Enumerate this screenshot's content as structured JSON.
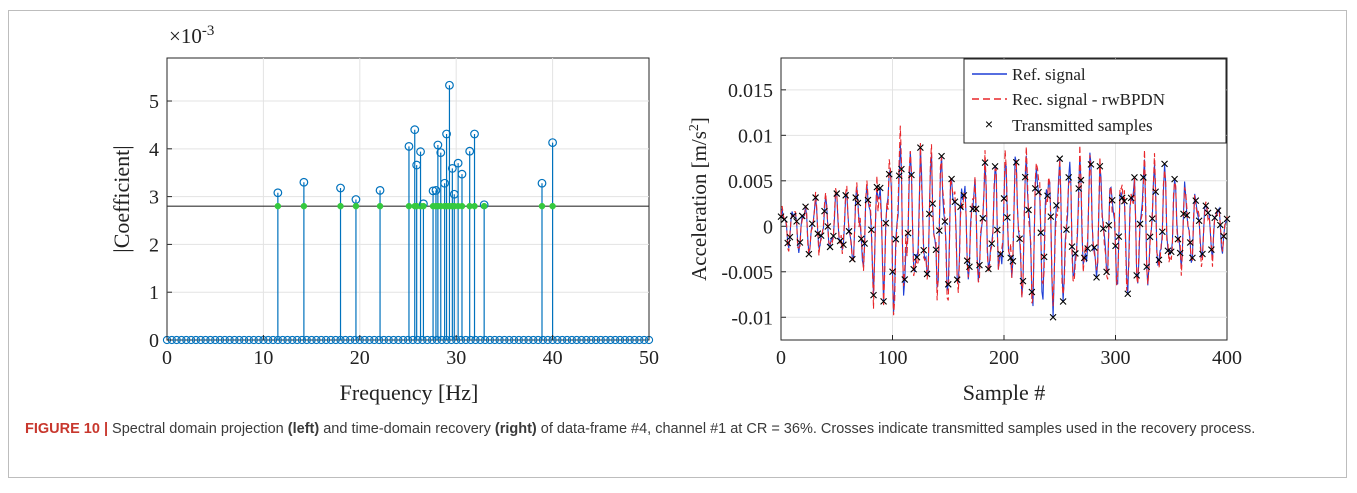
{
  "charts": {
    "left": {
      "exponent_label": "×10",
      "exponent_power": "-3",
      "ylabel": "|Coefficient|",
      "xlabel": "Frequency [Hz]",
      "xticks": [
        "0",
        "10",
        "20",
        "30",
        "40",
        "50"
      ],
      "yticks": [
        "0",
        "1",
        "2",
        "3",
        "4",
        "5"
      ]
    },
    "right": {
      "ylabel_main": "Acceleration [m/s",
      "ylabel_sup": "2",
      "ylabel_end": "]",
      "xlabel": "Sample #",
      "xticks": [
        "0",
        "100",
        "200",
        "300",
        "400"
      ],
      "yticks": [
        "0.015",
        "0.01",
        "0.005",
        "0",
        "-0.005",
        "-0.01"
      ],
      "legend": [
        "Ref. signal",
        "Rec. signal - rwBPDN",
        "Transmitted samples"
      ]
    }
  },
  "chart_data": [
    {
      "type": "scatter",
      "subtype": "stem",
      "xlabel": "Frequency [Hz]",
      "ylabel": "|Coefficient|",
      "y_multiplier": "×10^-3",
      "xlim": [
        0,
        50
      ],
      "ylim": [
        0,
        5.9
      ],
      "grid": true,
      "threshold": 2.8,
      "threshold_color": "#333333",
      "stem_color": "#0072bd",
      "marker_color": "#35c93f",
      "zero_stem_spacing_hz": 0.5,
      "stems": [
        {
          "x": 11.5,
          "y": 3.08
        },
        {
          "x": 14.2,
          "y": 3.3
        },
        {
          "x": 18.0,
          "y": 3.18
        },
        {
          "x": 19.6,
          "y": 2.94
        },
        {
          "x": 22.1,
          "y": 3.13
        },
        {
          "x": 25.1,
          "y": 4.05
        },
        {
          "x": 25.7,
          "y": 4.4
        },
        {
          "x": 25.9,
          "y": 3.66
        },
        {
          "x": 26.3,
          "y": 3.94
        },
        {
          "x": 26.6,
          "y": 2.85
        },
        {
          "x": 27.6,
          "y": 3.12
        },
        {
          "x": 27.9,
          "y": 3.13
        },
        {
          "x": 28.1,
          "y": 4.08
        },
        {
          "x": 28.4,
          "y": 3.92
        },
        {
          "x": 28.8,
          "y": 3.28
        },
        {
          "x": 29.0,
          "y": 4.31
        },
        {
          "x": 29.3,
          "y": 5.33
        },
        {
          "x": 29.6,
          "y": 3.59
        },
        {
          "x": 29.8,
          "y": 3.05
        },
        {
          "x": 30.2,
          "y": 3.7
        },
        {
          "x": 30.6,
          "y": 3.47
        },
        {
          "x": 31.4,
          "y": 3.95
        },
        {
          "x": 31.9,
          "y": 4.31
        },
        {
          "x": 32.9,
          "y": 2.83
        },
        {
          "x": 38.9,
          "y": 3.28
        },
        {
          "x": 40.0,
          "y": 4.13
        }
      ]
    },
    {
      "type": "line",
      "xlabel": "Sample #",
      "ylabel": "Acceleration [m/s^2]",
      "xlim": [
        0,
        400
      ],
      "ylim": [
        -0.0125,
        0.0185
      ],
      "grid": true,
      "legend_position": "top-right",
      "series": [
        {
          "name": "Ref. signal",
          "color": "#1f3fd6",
          "style": "solid"
        },
        {
          "name": "Rec. signal - rwBPDN",
          "color": "#e8262a",
          "style": "dashed"
        },
        {
          "name": "Transmitted samples",
          "color": "#000000",
          "style": "marker-x"
        }
      ],
      "envelope_points": [
        [
          0,
          0.002
        ],
        [
          25,
          0.003
        ],
        [
          50,
          0.0035
        ],
        [
          75,
          0.005
        ],
        [
          100,
          0.009
        ],
        [
          125,
          0.008
        ],
        [
          150,
          0.0075
        ],
        [
          175,
          0.006
        ],
        [
          200,
          0.007
        ],
        [
          225,
          0.0085
        ],
        [
          250,
          0.0085
        ],
        [
          275,
          0.0075
        ],
        [
          300,
          0.006
        ],
        [
          325,
          0.0075
        ],
        [
          350,
          0.0055
        ],
        [
          375,
          0.004
        ],
        [
          400,
          0.0025
        ]
      ],
      "dominant_period_samples": 9.5,
      "transmitted_fraction": 0.36,
      "total_samples": 400
    }
  ],
  "caption": {
    "label": "FIGURE 10 |",
    "part1": " Spectral domain projection ",
    "bold1": "(left)",
    "part2": " and time-domain recovery ",
    "bold2": "(right)",
    "part3": " of data-frame #4, channel #1 at CR = 36%. Crosses indicate transmitted samples used in the recovery process."
  }
}
